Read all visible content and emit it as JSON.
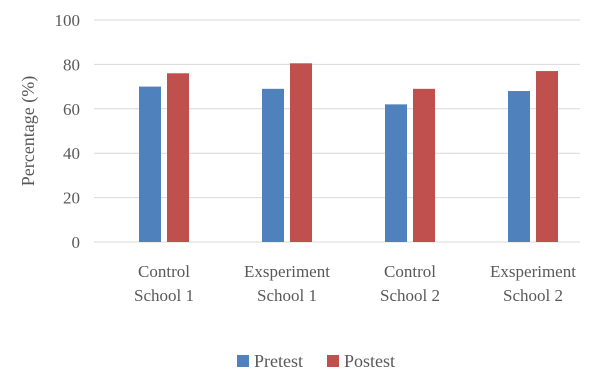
{
  "chart_data": {
    "type": "bar",
    "categories": [
      [
        "Control",
        "School 1"
      ],
      [
        "Exsperiment",
        "School 1"
      ],
      [
        "Control",
        "School 2"
      ],
      [
        "Exsperiment",
        "School 2"
      ]
    ],
    "series": [
      {
        "name": "Pretest",
        "color": "#4F81BD",
        "values": [
          70,
          69,
          62,
          68
        ]
      },
      {
        "name": "Postest",
        "color": "#C0504D",
        "values": [
          76,
          80.5,
          69,
          77
        ]
      }
    ],
    "title": "",
    "xlabel": "",
    "ylabel": "Percentage (%)",
    "ylim": [
      0,
      100
    ],
    "yticks": [
      "0",
      "20",
      "40",
      "60",
      "80",
      "100"
    ],
    "grid": true,
    "legend": "bottom"
  }
}
